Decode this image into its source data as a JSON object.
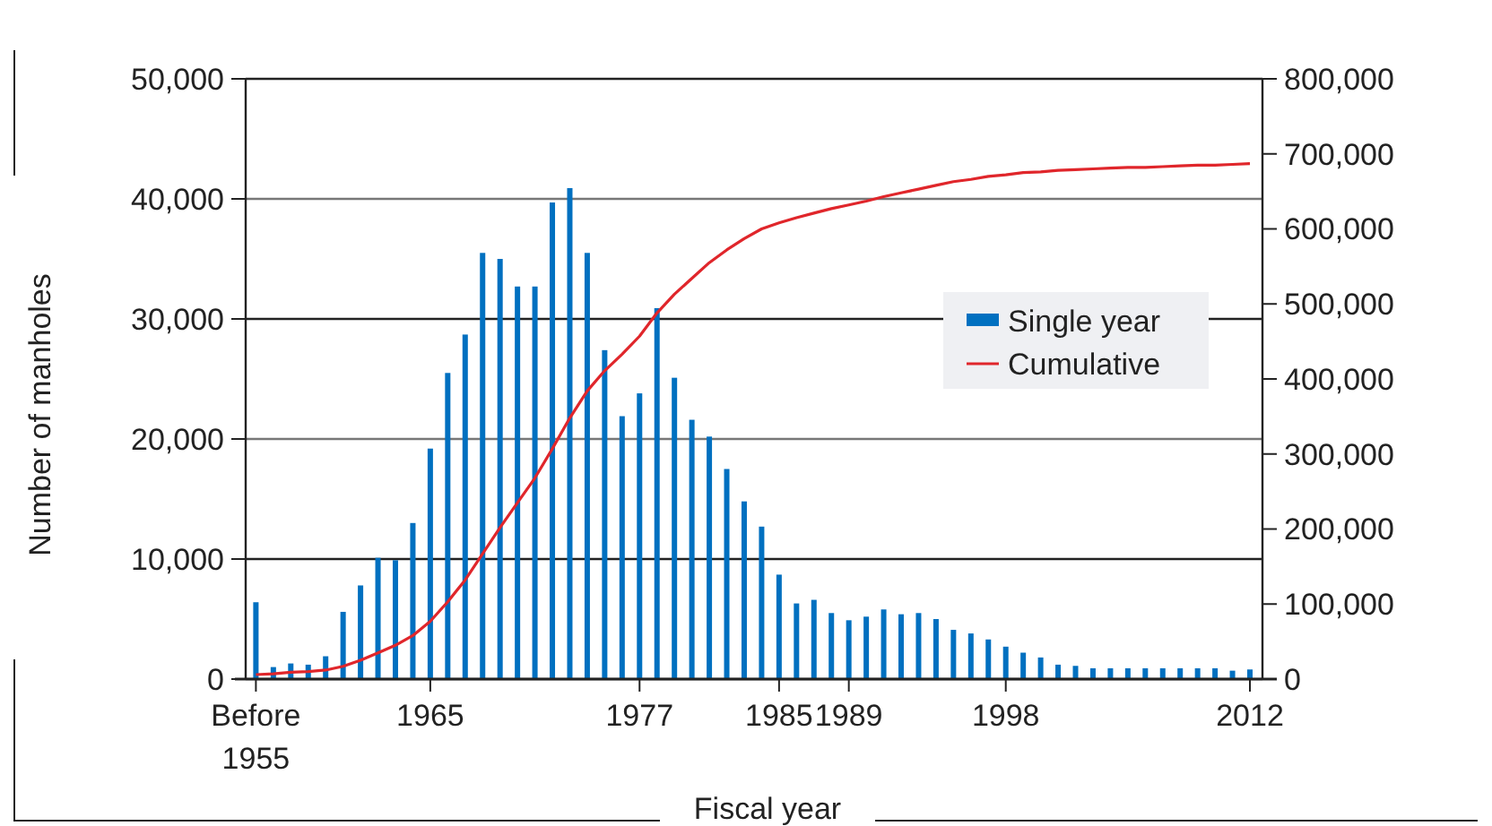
{
  "chart_data": {
    "type": "bar",
    "xlabel": "Fiscal year",
    "ylabel": "Number of manholes",
    "categories": [
      "Before 1955",
      null,
      null,
      null,
      null,
      null,
      null,
      null,
      null,
      null,
      "1965",
      null,
      null,
      null,
      null,
      null,
      null,
      null,
      null,
      null,
      null,
      null,
      "1977",
      null,
      null,
      null,
      null,
      null,
      null,
      null,
      "1985",
      null,
      null,
      null,
      "1989",
      null,
      null,
      null,
      null,
      null,
      null,
      null,
      null,
      "1998",
      null,
      null,
      null,
      null,
      null,
      null,
      null,
      null,
      null,
      null,
      null,
      null,
      null,
      "2012"
    ],
    "series": [
      {
        "name": "Single year",
        "color": "#0070c0",
        "values": [
          6400,
          1000,
          1300,
          1200,
          1900,
          5600,
          7800,
          10100,
          9900,
          13000,
          19200,
          25500,
          28700,
          35500,
          35000,
          32700,
          32700,
          39700,
          40900,
          35500,
          27400,
          21900,
          23800,
          30900,
          25100,
          21600,
          20200,
          17500,
          14800,
          12700,
          8700,
          6300,
          6600,
          5500,
          4900,
          5200,
          5800,
          5400,
          5500,
          5000,
          4100,
          3800,
          3300,
          2700,
          2200,
          1800,
          1200,
          1100,
          900,
          900,
          900,
          900,
          900,
          900,
          900,
          900,
          700,
          800
        ]
      },
      {
        "name": "Cumulative",
        "type": "line",
        "axis": "y2",
        "color": "#e0262b",
        "values": [
          6000,
          7000,
          9000,
          10000,
          12000,
          17000,
          25000,
          35000,
          45000,
          58000,
          77000,
          103000,
          132000,
          167000,
          202000,
          235000,
          268000,
          307000,
          348000,
          384000,
          411000,
          433000,
          457000,
          488000,
          513000,
          534000,
          555000,
          572000,
          587000,
          600000,
          608000,
          615000,
          621000,
          627000,
          632000,
          637000,
          643000,
          648000,
          653000,
          658000,
          663000,
          666000,
          670000,
          672000,
          675000,
          676000,
          678000,
          679000,
          680000,
          681000,
          682000,
          682000,
          683000,
          684000,
          685000,
          685000,
          686000,
          687000
        ]
      }
    ],
    "ylim": [
      0,
      50000
    ],
    "yticks": [
      {
        "value": 0,
        "label": "0"
      },
      {
        "value": 10000,
        "label": "10,000"
      },
      {
        "value": 20000,
        "label": "20,000"
      },
      {
        "value": 30000,
        "label": "30,000"
      },
      {
        "value": 40000,
        "label": "40,000"
      },
      {
        "value": 50000,
        "label": "50,000"
      }
    ],
    "y2lim": [
      0,
      800000
    ],
    "y2ticks": [
      {
        "value": 0,
        "label": "0"
      },
      {
        "value": 100000,
        "label": "100,000"
      },
      {
        "value": 200000,
        "label": "200,000"
      },
      {
        "value": 300000,
        "label": "300,000"
      },
      {
        "value": 400000,
        "label": "400,000"
      },
      {
        "value": 500000,
        "label": "500,000"
      },
      {
        "value": 600000,
        "label": "600,000"
      },
      {
        "value": 700000,
        "label": "700,000"
      },
      {
        "value": 800000,
        "label": "800,000"
      }
    ],
    "grid": "y",
    "legend": "right",
    "marker": "none",
    "line_style": "solid"
  }
}
